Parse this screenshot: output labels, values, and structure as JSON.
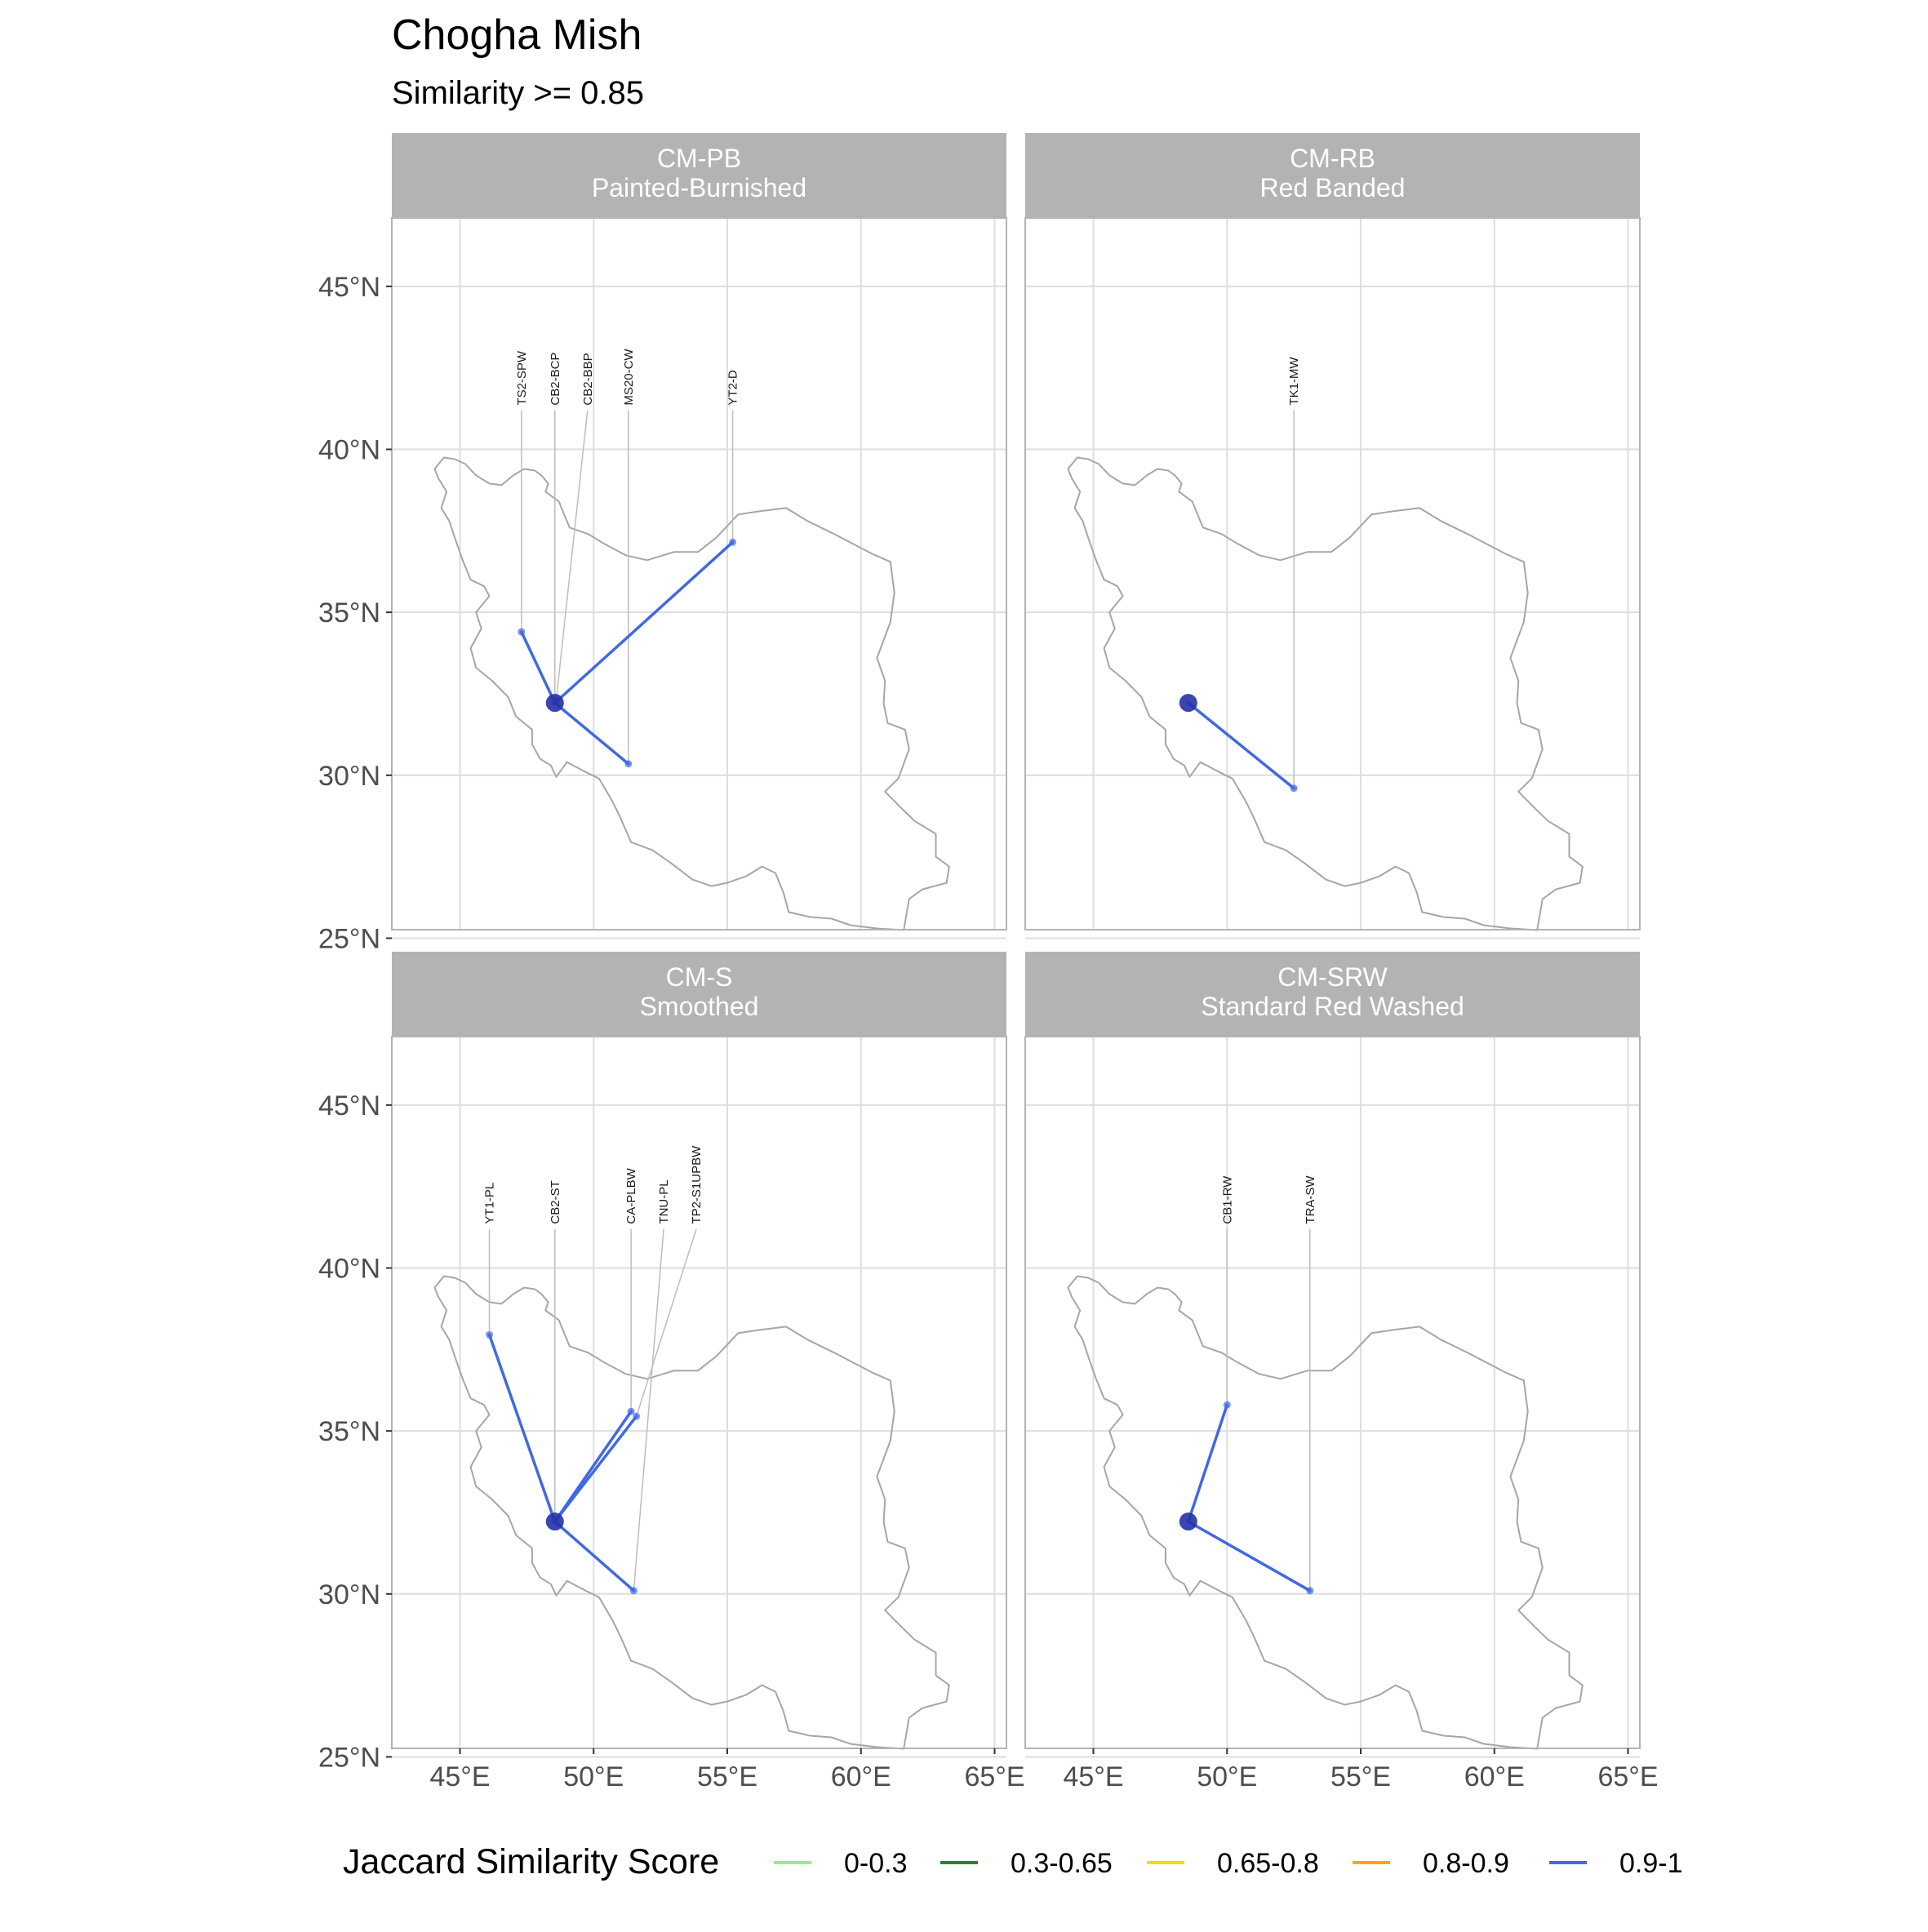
{
  "title": "Chogha Mish",
  "subtitle": "Similarity >= 0.85",
  "x_ticks": [
    "45°E",
    "50°E",
    "55°E",
    "60°E",
    "65°E"
  ],
  "y_ticks": [
    "45°N",
    "40°N",
    "35°N",
    "30°N",
    "25°N"
  ],
  "colors": {
    "strip_bg": "#b3b3b3",
    "grid": "#dedede",
    "border": "#b3b3b3",
    "country_outline": "#a6a6a6",
    "connection": "#4169e1",
    "origin_site": "#2332a8",
    "leader_line": "#bdbdbd"
  },
  "origin": {
    "name": "Chogha Mish",
    "lon": 48.55,
    "lat": 32.22
  },
  "panels": [
    {
      "code": "CM-PB",
      "name": "Painted-Burnished",
      "targets": [
        {
          "label": "TS2-SPW",
          "lon": 47.3,
          "lat": 34.4
        },
        {
          "label": "CB2-BCP",
          "lon": 48.55,
          "lat": 32.25
        },
        {
          "label": "CB2-BBP",
          "lon": 48.6,
          "lat": 32.3
        },
        {
          "label": "MS20-CW",
          "lon": 51.3,
          "lat": 30.35
        },
        {
          "label": "YT2-D",
          "lon": 55.2,
          "lat": 37.15
        }
      ]
    },
    {
      "code": "CM-RB",
      "name": "Red Banded",
      "targets": [
        {
          "label": "TK1-MW",
          "lon": 52.5,
          "lat": 29.6
        }
      ]
    },
    {
      "code": "CM-S",
      "name": "Smoothed",
      "targets": [
        {
          "label": "YT1-PL",
          "lon": 46.1,
          "lat": 37.95
        },
        {
          "label": "CB2-ST",
          "lon": 48.55,
          "lat": 32.25
        },
        {
          "label": "TNU-PL",
          "lon": 51.5,
          "lat": 30.1
        },
        {
          "label": "CA-PLBW",
          "lon": 51.4,
          "lat": 35.6
        },
        {
          "label": "TP2-S1UPBW",
          "lon": 51.6,
          "lat": 35.45
        }
      ]
    },
    {
      "code": "CM-SRW",
      "name": "Standard Red Washed",
      "targets": [
        {
          "label": "CB1-RW",
          "lon": 50.0,
          "lat": 35.8
        },
        {
          "label": "TRA-SW",
          "lon": 53.1,
          "lat": 30.1
        }
      ]
    }
  ],
  "legend": {
    "title": "Jaccard Similarity Score",
    "items": [
      {
        "label": "0-0.3",
        "color": "#90ee90"
      },
      {
        "label": "0.3-0.65",
        "color": "#228b22"
      },
      {
        "label": "0.65-0.8",
        "color": "#ffd700"
      },
      {
        "label": "0.8-0.9",
        "color": "#ffa500"
      },
      {
        "label": "0.9-1",
        "color": "#4169e1"
      }
    ]
  }
}
